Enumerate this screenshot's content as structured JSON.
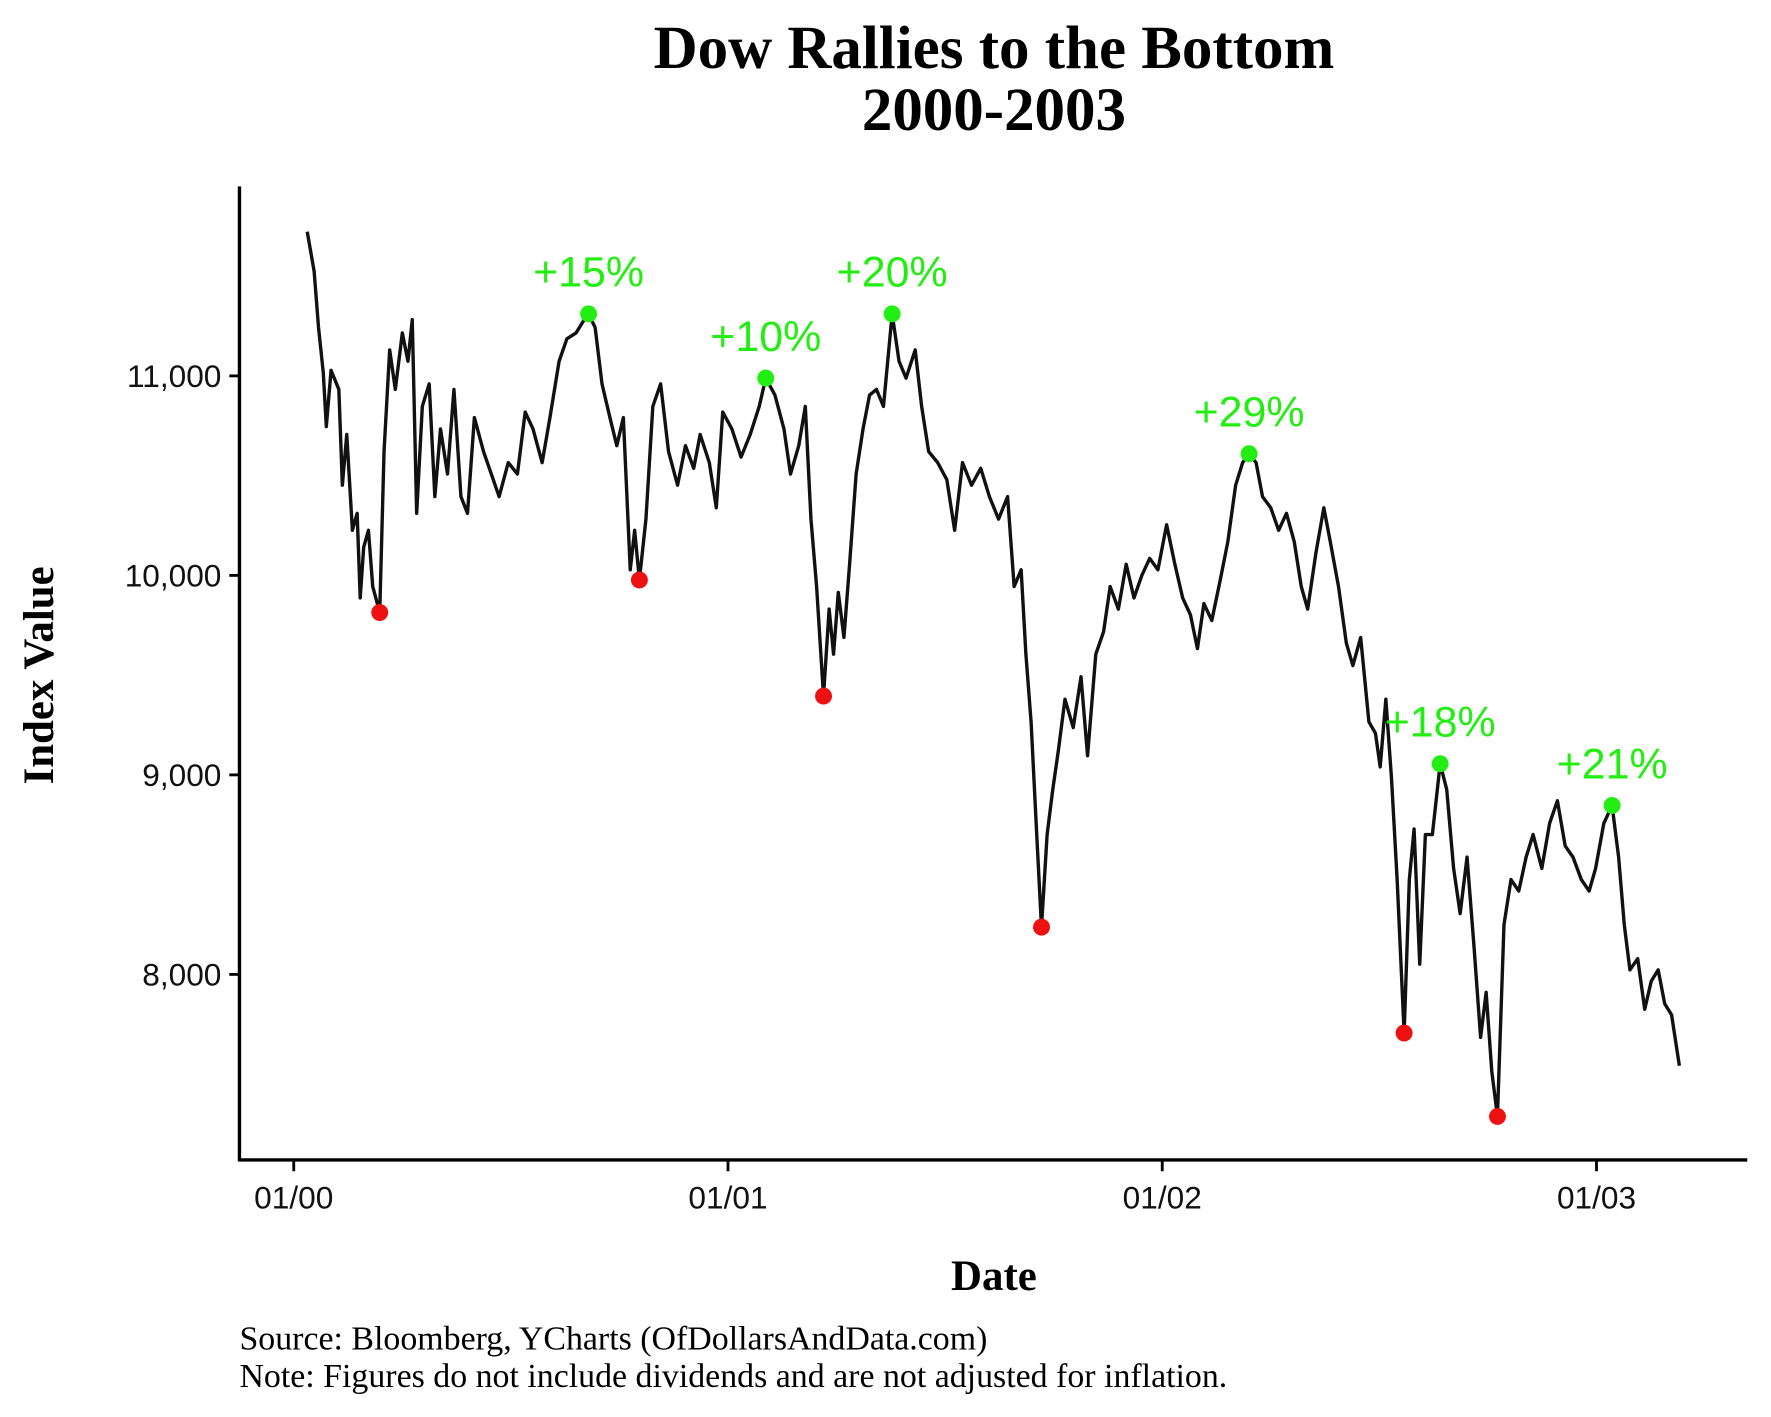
{
  "chart_data": {
    "type": "line",
    "title": "Dow Rallies to the Bottom",
    "subtitle": "2000-2003",
    "x_label": "Date",
    "y_label": "Index Value",
    "source": "Source: Bloomberg, YCharts (OfDollarsAndData.com)",
    "note": "Note: Figures do not include dividends and are not adjusted for inflation.",
    "xlim": [
      1999.875,
      2003.342
    ],
    "xticks": [
      {
        "value": 2000,
        "label": "01/00"
      },
      {
        "value": 2001,
        "label": "01/01"
      },
      {
        "value": 2002,
        "label": "01/02"
      },
      {
        "value": 2003,
        "label": "01/03"
      }
    ],
    "ylim": [
      7070,
      11950
    ],
    "yticks": [
      {
        "value": 8000,
        "label": "8,000"
      },
      {
        "value": 9000,
        "label": "9,000"
      },
      {
        "value": 10000,
        "label": "10,000"
      },
      {
        "value": 11000,
        "label": "11,000"
      }
    ],
    "grid": false,
    "series": [
      {
        "name": "Dow",
        "color": "#111111",
        "x": [
          2000.031,
          2000.047,
          2000.057,
          2000.068,
          2000.075,
          2000.086,
          2000.104,
          2000.112,
          2000.122,
          2000.135,
          2000.146,
          2000.153,
          2000.161,
          2000.172,
          2000.182,
          2000.198,
          2000.208,
          2000.221,
          2000.234,
          2000.25,
          2000.263,
          2000.273,
          2000.283,
          2000.296,
          2000.312,
          2000.325,
          2000.338,
          2000.354,
          2000.369,
          2000.385,
          2000.4,
          2000.416,
          2000.437,
          2000.455,
          2000.473,
          2000.494,
          2000.515,
          2000.533,
          2000.551,
          2000.572,
          2000.59,
          2000.611,
          2000.629,
          2000.65,
          2000.666,
          2000.679,
          2000.694,
          2000.71,
          2000.728,
          2000.744,
          2000.759,
          2000.775,
          2000.785,
          2000.796,
          2000.811,
          2000.827,
          2000.845,
          2000.863,
          2000.884,
          2000.902,
          2000.921,
          2000.936,
          2000.957,
          2000.973,
          2000.988,
          2001.009,
          2001.03,
          2001.051,
          2001.072,
          2001.087,
          2001.108,
          2001.129,
          2001.144,
          2001.163,
          2001.178,
          2001.191,
          2001.204,
          2001.22,
          2001.233,
          2001.243,
          2001.254,
          2001.267,
          2001.28,
          2001.295,
          2001.311,
          2001.326,
          2001.342,
          2001.358,
          2001.378,
          2001.394,
          2001.41,
          2001.431,
          2001.446,
          2001.462,
          2001.483,
          2001.504,
          2001.522,
          2001.54,
          2001.561,
          2001.582,
          2001.602,
          2001.623,
          2001.644,
          2001.659,
          2001.675,
          2001.686,
          2001.698,
          2001.711,
          2001.722,
          2001.735,
          2001.748,
          2001.761,
          2001.776,
          2001.795,
          2001.813,
          2001.828,
          2001.847,
          2001.865,
          2001.88,
          2001.899,
          2001.917,
          2001.935,
          2001.953,
          2001.971,
          2001.99,
          2002.01,
          2002.029,
          2002.047,
          2002.065,
          2002.081,
          2002.096,
          2002.114,
          2002.133,
          2002.151,
          2002.169,
          2002.185,
          2002.2,
          2002.216,
          2002.231,
          2002.25,
          2002.268,
          2002.286,
          2002.304,
          2002.32,
          2002.335,
          2002.354,
          2002.372,
          2002.387,
          2002.406,
          2002.424,
          2002.439,
          2002.457,
          2002.476,
          2002.491,
          2002.502,
          2002.515,
          2002.528,
          2002.541,
          2002.557,
          2002.569,
          2002.58,
          2002.593,
          2002.606,
          2002.622,
          2002.64,
          2002.655,
          2002.671,
          2002.686,
          2002.702,
          2002.718,
          2002.733,
          2002.746,
          2002.759,
          2002.772,
          2002.787,
          2002.803,
          2002.821,
          2002.838,
          2002.854,
          2002.874,
          2002.892,
          2002.91,
          2002.928,
          2002.946,
          2002.965,
          2002.983,
          2002.998,
          2003.017,
          2003.036,
          2003.051,
          2003.064,
          2003.077,
          2003.095,
          2003.111,
          2003.126,
          2003.142,
          2003.157,
          2003.173,
          2003.191
        ],
        "values": [
          11723,
          11525,
          11243,
          11017,
          10746,
          11028,
          10932,
          10452,
          10706,
          10226,
          10311,
          9887,
          10141,
          10226,
          9944,
          9814,
          10621,
          11130,
          10932,
          11215,
          11073,
          11282,
          10311,
          10847,
          10960,
          10395,
          10734,
          10508,
          10932,
          10395,
          10311,
          10791,
          10621,
          10508,
          10395,
          10565,
          10508,
          10819,
          10734,
          10565,
          10791,
          11073,
          11186,
          11215,
          11271,
          11311,
          11243,
          10960,
          10791,
          10650,
          10791,
          10028,
          10226,
          9977,
          10282,
          10847,
          10960,
          10621,
          10452,
          10650,
          10537,
          10706,
          10565,
          10339,
          10819,
          10734,
          10593,
          10706,
          10847,
          10989,
          10904,
          10734,
          10508,
          10650,
          10847,
          10282,
          9944,
          9395,
          9831,
          9605,
          9915,
          9689,
          10056,
          10508,
          10734,
          10904,
          10932,
          10847,
          11311,
          11073,
          10989,
          11130,
          10847,
          10621,
          10565,
          10480,
          10226,
          10565,
          10452,
          10537,
          10395,
          10282,
          10395,
          9944,
          10028,
          9605,
          9266,
          8701,
          8237,
          8701,
          8927,
          9124,
          9379,
          9237,
          9492,
          9096,
          9605,
          9718,
          9944,
          9831,
          10056,
          9887,
          10000,
          10085,
          10028,
          10254,
          10056,
          9887,
          9802,
          9633,
          9859,
          9774,
          9972,
          10169,
          10452,
          10565,
          10610,
          10565,
          10395,
          10339,
          10226,
          10311,
          10169,
          9944,
          9831,
          10113,
          10339,
          10169,
          9944,
          9661,
          9548,
          9689,
          9266,
          9209,
          9040,
          9379,
          8983,
          8475,
          7706,
          8475,
          8729,
          8051,
          8701,
          8701,
          9056,
          8927,
          8531,
          8305,
          8588,
          8136,
          7684,
          7910,
          7514,
          7288,
          8249,
          8475,
          8418,
          8588,
          8701,
          8531,
          8757,
          8870,
          8644,
          8588,
          8475,
          8418,
          8531,
          8757,
          8847,
          8588,
          8249,
          8023,
          8079,
          7825,
          7966,
          8023,
          7853,
          7797,
          7542
        ]
      }
    ],
    "peaks": {
      "color": "#22ee11",
      "x": [
        2000.679,
        2001.087,
        2001.378,
        2002.2,
        2002.64,
        2003.036
      ],
      "values": [
        11311,
        10989,
        11311,
        10610,
        9056,
        8847
      ],
      "labels": [
        "+15%",
        "+10%",
        "+20%",
        "+29%",
        "+18%",
        "+21%"
      ]
    },
    "troughs": {
      "color": "#ee1111",
      "x": [
        2000.198,
        2000.796,
        2001.22,
        2001.722,
        2002.557,
        2002.772
      ],
      "values": [
        9814,
        9977,
        9395,
        8237,
        7706,
        7288
      ]
    }
  }
}
